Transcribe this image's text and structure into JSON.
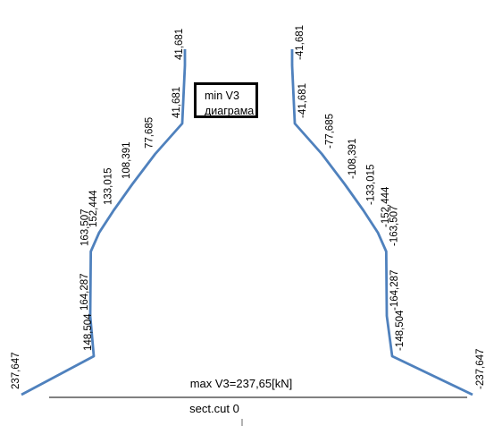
{
  "chart_data": {
    "type": "line",
    "legend": [
      "min V3",
      "диаграма"
    ],
    "caption": "max V3=237,65[kN]",
    "section_label": "sect.cut 0",
    "line_color": "#4f81bd",
    "series": [
      {
        "labels": [
          "237,647",
          "148,504",
          "164,287",
          "163,507",
          "152,444",
          "133,015",
          "108,391",
          "77,685",
          "41,681",
          "41,681"
        ],
        "values": [
          237.647,
          148.504,
          164.287,
          163.507,
          152.444,
          133.015,
          108.391,
          77.685,
          41.681,
          41.681
        ]
      },
      {
        "labels": [
          "-41,681",
          "-41,681",
          "-77,685",
          "-108,391",
          "-133,015",
          "-152,444",
          "-163,507",
          "-164,287",
          "-148,504",
          "-237,647"
        ],
        "values": [
          -41.681,
          -41.681,
          -77.685,
          -108.391,
          -133.015,
          -152.444,
          -163.507,
          -164.287,
          -148.504,
          -237.647
        ]
      }
    ]
  }
}
